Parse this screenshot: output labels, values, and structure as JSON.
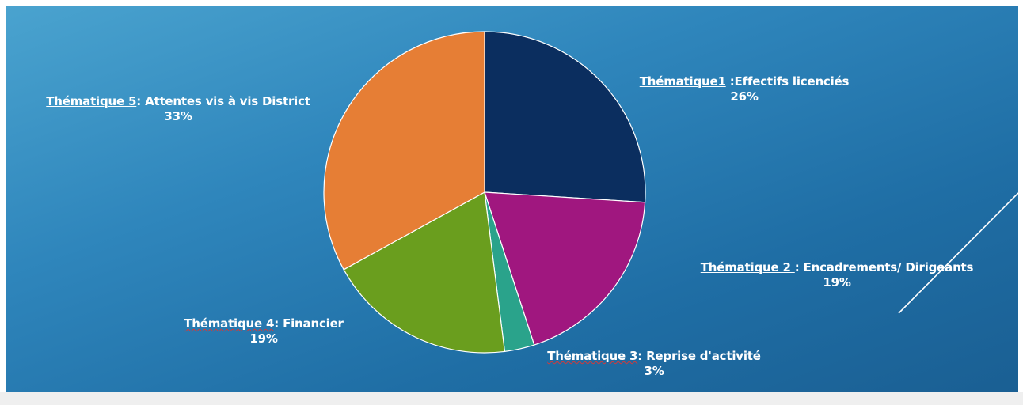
{
  "chart_data": {
    "type": "pie",
    "slices": [
      {
        "label_prefix": "Thématique1",
        "label_suffix": " :Effectifs licenciés",
        "value": 26,
        "percent_label": "26%",
        "color": "#0b2e5f"
      },
      {
        "label_prefix": "Thématique 2 ",
        "label_suffix": ": Encadrements/ Dirigeants",
        "value": 19,
        "percent_label": "19%",
        "color": "#a0177f"
      },
      {
        "label_prefix": "Thématique 3",
        "label_suffix": ": Reprise d'activité",
        "value": 3,
        "percent_label": "3%",
        "color": "#2aa38b"
      },
      {
        "label_prefix": "Thématique 4",
        "label_suffix": ": Financier",
        "value": 19,
        "percent_label": "19%",
        "color": "#6a9e1e"
      },
      {
        "label_prefix": "Thématique 5",
        "label_suffix": ": Attentes vis à vis District",
        "value": 33,
        "percent_label": "33%",
        "color": "#e67e35"
      }
    ],
    "start_angle": "12 o'clock",
    "direction": "clockwise",
    "legend": "none",
    "title": ""
  },
  "colors": {
    "background_top": "#4aa3cf",
    "background_bottom": "#1a5f93",
    "label_text": "#ffffff"
  }
}
